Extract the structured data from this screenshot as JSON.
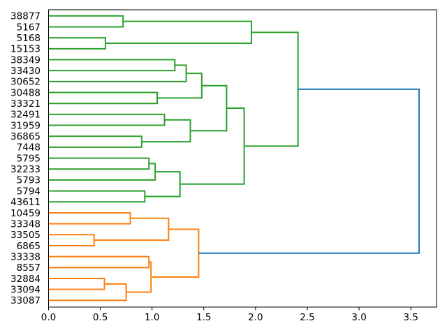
{
  "chart_data": {
    "type": "dendrogram",
    "orientation": "right",
    "title": "",
    "xlabel": "",
    "ylabel": "",
    "grid": false,
    "legend": null,
    "xlim": [
      0,
      3.75
    ],
    "x_tick_labels": [
      "0.0",
      "0.5",
      "1.0",
      "1.5",
      "2.0",
      "2.5",
      "3.0",
      "3.5"
    ],
    "x_tick_values": [
      0.0,
      0.5,
      1.0,
      1.5,
      2.0,
      2.5,
      3.0,
      3.5
    ],
    "palette": {
      "blue": "#1f77b4",
      "orange": "#ff7f0e",
      "green": "#2ca02c",
      "axes": "#000000",
      "text": "#000000",
      "background": "#ffffff"
    },
    "leaf_order_top_to_bottom": [
      "38877",
      "5167",
      "5168",
      "15153",
      "38349",
      "33430",
      "30652",
      "30488",
      "33321",
      "32491",
      "31959",
      "36865",
      "7448",
      "5795",
      "32233",
      "5793",
      "5794",
      "43611",
      "10459",
      "33348",
      "33505",
      "6865",
      "33338",
      "8557",
      "32884",
      "33094",
      "33087"
    ],
    "tree": {
      "d": 3.58,
      "c": "blue",
      "children": [
        {
          "d": 2.41,
          "c": "green",
          "children": [
            {
              "d": 1.96,
              "c": "green",
              "children": [
                {
                  "d": 0.72,
                  "c": "green",
                  "children": [
                    {
                      "leaf": "38877"
                    },
                    {
                      "leaf": "5167"
                    }
                  ]
                },
                {
                  "d": 0.55,
                  "c": "green",
                  "children": [
                    {
                      "leaf": "5168"
                    },
                    {
                      "leaf": "15153"
                    }
                  ]
                }
              ]
            },
            {
              "d": 1.89,
              "c": "green",
              "children": [
                {
                  "d": 1.72,
                  "c": "green",
                  "children": [
                    {
                      "d": 1.48,
                      "c": "green",
                      "children": [
                        {
                          "d": 1.33,
                          "c": "green",
                          "children": [
                            {
                              "d": 1.22,
                              "c": "green",
                              "children": [
                                {
                                  "leaf": "38349"
                                },
                                {
                                  "leaf": "33430"
                                }
                              ]
                            },
                            {
                              "leaf": "30652"
                            }
                          ]
                        },
                        {
                          "d": 1.05,
                          "c": "green",
                          "children": [
                            {
                              "leaf": "30488"
                            },
                            {
                              "leaf": "33321"
                            }
                          ]
                        }
                      ]
                    },
                    {
                      "d": 1.37,
                      "c": "green",
                      "children": [
                        {
                          "d": 1.12,
                          "c": "green",
                          "children": [
                            {
                              "leaf": "32491"
                            },
                            {
                              "leaf": "31959"
                            }
                          ]
                        },
                        {
                          "d": 0.9,
                          "c": "green",
                          "children": [
                            {
                              "leaf": "36865"
                            },
                            {
                              "leaf": "7448"
                            }
                          ]
                        }
                      ]
                    }
                  ]
                },
                {
                  "d": 1.27,
                  "c": "green",
                  "children": [
                    {
                      "d": 1.03,
                      "c": "green",
                      "children": [
                        {
                          "d": 0.97,
                          "c": "green",
                          "children": [
                            {
                              "leaf": "5795"
                            },
                            {
                              "leaf": "32233"
                            }
                          ]
                        },
                        {
                          "leaf": "5793"
                        }
                      ]
                    },
                    {
                      "d": 0.93,
                      "c": "green",
                      "children": [
                        {
                          "leaf": "5794"
                        },
                        {
                          "leaf": "43611"
                        }
                      ]
                    }
                  ]
                }
              ]
            }
          ]
        },
        {
          "d": 1.45,
          "c": "orange",
          "children": [
            {
              "d": 1.16,
              "c": "orange",
              "children": [
                {
                  "d": 0.79,
                  "c": "orange",
                  "children": [
                    {
                      "leaf": "10459"
                    },
                    {
                      "leaf": "33348"
                    }
                  ]
                },
                {
                  "d": 0.44,
                  "c": "orange",
                  "children": [
                    {
                      "leaf": "33505"
                    },
                    {
                      "leaf": "6865"
                    }
                  ]
                }
              ]
            },
            {
              "d": 0.99,
              "c": "orange",
              "children": [
                {
                  "d": 0.97,
                  "c": "orange",
                  "children": [
                    {
                      "leaf": "33338"
                    },
                    {
                      "leaf": "8557"
                    }
                  ]
                },
                {
                  "d": 0.75,
                  "c": "orange",
                  "children": [
                    {
                      "d": 0.54,
                      "c": "orange",
                      "children": [
                        {
                          "leaf": "32884"
                        },
                        {
                          "leaf": "33094"
                        }
                      ]
                    },
                    {
                      "leaf": "33087"
                    }
                  ]
                }
              ]
            }
          ]
        }
      ]
    }
  }
}
